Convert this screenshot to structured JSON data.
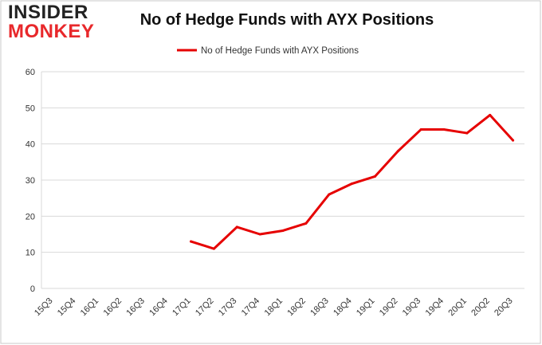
{
  "logo": {
    "line1": "INSIDER",
    "line2": "MONKEY"
  },
  "chart_data": {
    "type": "line",
    "title": "No of Hedge Funds with AYX Positions",
    "xlabel": "",
    "ylabel": "",
    "ylim": [
      0,
      60
    ],
    "yticks": [
      0,
      10,
      20,
      30,
      40,
      50,
      60
    ],
    "grid": true,
    "legend_position": "top-center",
    "categories": [
      "15Q3",
      "15Q4",
      "16Q1",
      "16Q2",
      "16Q3",
      "16Q4",
      "17Q1",
      "17Q2",
      "17Q3",
      "17Q4",
      "18Q1",
      "18Q2",
      "18Q3",
      "18Q4",
      "19Q1",
      "19Q2",
      "19Q3",
      "19Q4",
      "20Q1",
      "20Q2",
      "20Q3"
    ],
    "series": [
      {
        "name": "No of Hedge Funds with AYX Positions",
        "color": "#e60000",
        "values": [
          null,
          null,
          null,
          null,
          null,
          null,
          13,
          11,
          17,
          15,
          16,
          18,
          26,
          29,
          31,
          38,
          44,
          44,
          43,
          48,
          41
        ]
      }
    ]
  }
}
